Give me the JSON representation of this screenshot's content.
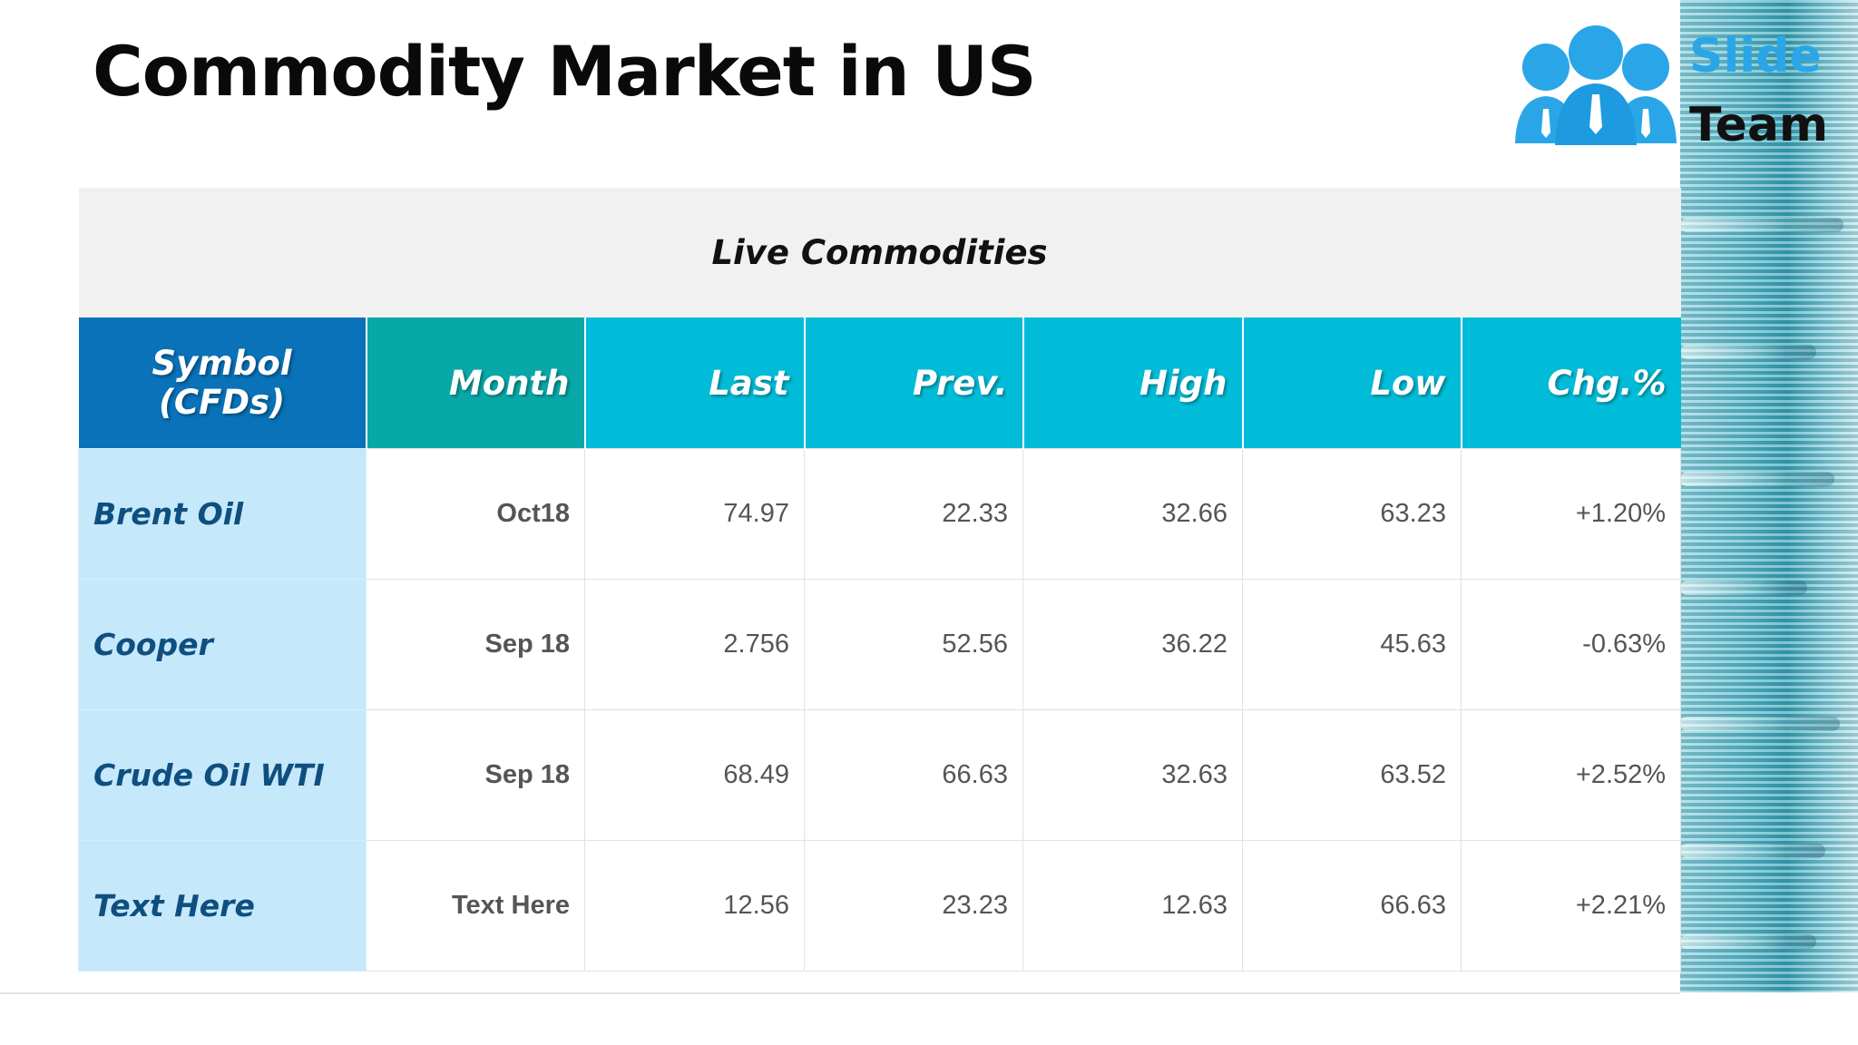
{
  "slide": {
    "title": "Commodity Market in US"
  },
  "logo": {
    "word1": "Slide",
    "word2": "Team",
    "icon": "people-icon"
  },
  "table": {
    "caption": "Live Commodities",
    "headers": [
      "Symbol (CFDs)",
      "Month",
      "Last",
      "Prev.",
      "High",
      "Low",
      "Chg.%"
    ],
    "rows": [
      {
        "symbol": "Brent Oil",
        "month": "Oct18",
        "last": "74.97",
        "prev": "22.33",
        "high": "32.66",
        "low": "63.23",
        "chg": "+1.20%"
      },
      {
        "symbol": "Cooper",
        "month": "Sep 18",
        "last": "2.756",
        "prev": "52.56",
        "high": "36.22",
        "low": "45.63",
        "chg": "-0.63%"
      },
      {
        "symbol": "Crude Oil WTI",
        "month": "Sep 18",
        "last": "68.49",
        "prev": "66.63",
        "high": "32.63",
        "low": "63.52",
        "chg": "+2.52%"
      },
      {
        "symbol": "Text Here",
        "month": "Text Here",
        "last": "12.56",
        "prev": "23.23",
        "high": "12.63",
        "low": "66.63",
        "chg": "+2.21%"
      }
    ]
  },
  "colors": {
    "symbol_header": "#0972b8",
    "month_header": "#09a8a8",
    "column_header": "#00bcd8",
    "symbol_cell": "#c6e8fb",
    "symbol_text": "#0e4f80",
    "logo_blue": "#2aa6e8"
  }
}
